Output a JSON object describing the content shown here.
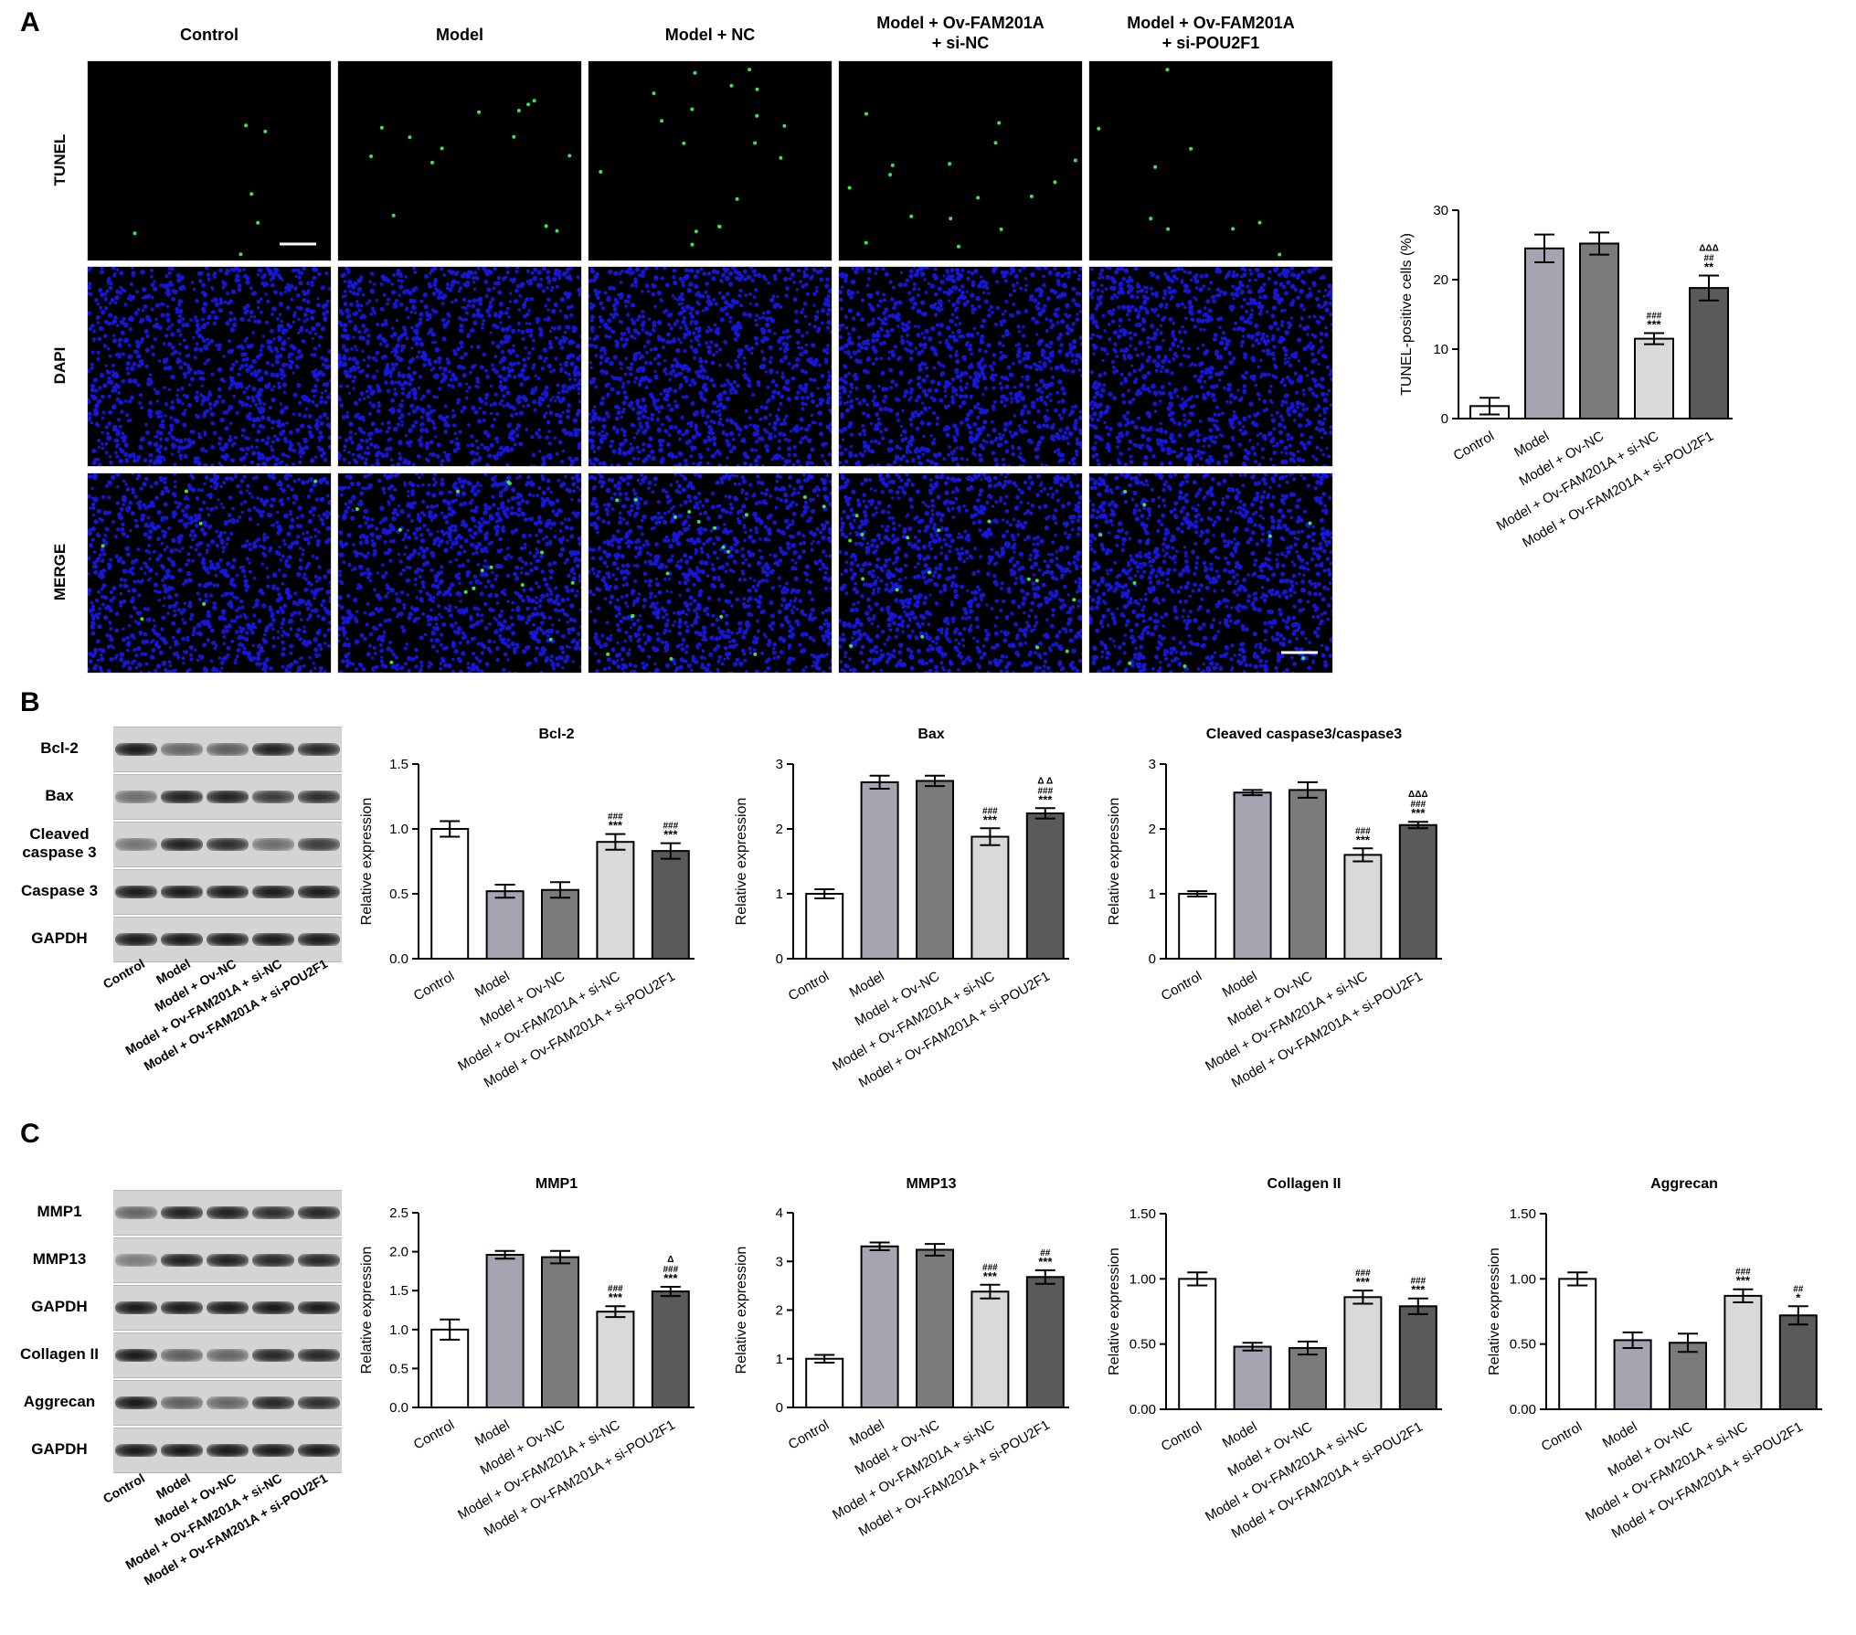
{
  "panels": {
    "A": "A",
    "B": "B",
    "C": "C"
  },
  "microscopy": {
    "columns": [
      "Control",
      "Model",
      "Model + NC",
      "Model + Ov-FAM201A\n+ si-NC",
      "Model + Ov-FAM201A\n+ si-POU2F1"
    ],
    "rows": [
      "TUNEL",
      "DAPI",
      "MERGE"
    ],
    "colors": {
      "tunel": "#39e650",
      "dapi": "#1a1aff",
      "background": "#000000"
    }
  },
  "blots": {
    "B": {
      "rows": [
        "Bcl-2",
        "Bax",
        "Cleaved\ncaspase 3",
        "Caspase 3",
        "GAPDH"
      ],
      "band_intensity": [
        [
          1.0,
          0.45,
          0.5,
          0.95,
          0.9
        ],
        [
          0.4,
          0.95,
          0.95,
          0.75,
          0.85
        ],
        [
          0.35,
          0.95,
          0.85,
          0.4,
          0.75
        ],
        [
          1,
          1,
          1,
          1,
          1
        ],
        [
          1,
          1,
          1,
          1,
          1
        ]
      ],
      "lanes": [
        "Control",
        "Model",
        "Model + Ov-NC",
        "Model + Ov-FAM201A + si-NC",
        "Model + Ov-FAM201A + si-POU2F1"
      ]
    },
    "C": {
      "rows": [
        "MMP1",
        "MMP13",
        "GAPDH",
        "Collagen II",
        "Aggrecan",
        "GAPDH"
      ],
      "band_intensity": [
        [
          0.45,
          0.95,
          0.95,
          0.85,
          0.9
        ],
        [
          0.3,
          0.95,
          0.95,
          0.9,
          0.9
        ],
        [
          1,
          1,
          1,
          1,
          1
        ],
        [
          1.0,
          0.5,
          0.45,
          0.9,
          0.9
        ],
        [
          1.0,
          0.5,
          0.45,
          0.9,
          0.85
        ],
        [
          1,
          1,
          1,
          1,
          1
        ]
      ],
      "lanes": [
        "Control",
        "Model",
        "Model + Ov-NC",
        "Model + Ov-FAM201A + si-NC",
        "Model + Ov-FAM201A + si-POU2F1"
      ]
    }
  },
  "chart_data": [
    {
      "id": "tunel",
      "type": "bar",
      "title": "",
      "ylabel": "TUNEL-positive cells (%)",
      "categories": [
        "Control",
        "Model",
        "Model + Ov-NC",
        "Model + Ov-FAM201A + si-NC",
        "Model + Ov-FAM201A + si-POU2F1"
      ],
      "values": [
        1.8,
        24.5,
        25.2,
        11.5,
        18.8
      ],
      "errors": [
        1.2,
        2.0,
        1.6,
        0.8,
        1.8
      ],
      "ylim": [
        0,
        30
      ],
      "yticks": [
        0,
        10,
        20,
        30
      ],
      "annotations": [
        "",
        "",
        "",
        "###\n***",
        "ΔΔΔ\n##\n**"
      ]
    },
    {
      "id": "bcl2",
      "type": "bar",
      "title": "Bcl-2",
      "ylabel": "Relative expression",
      "categories": [
        "Control",
        "Model",
        "Model + Ov-NC",
        "Model + Ov-FAM201A + si-NC",
        "Model + Ov-FAM201A + si-POU2F1"
      ],
      "values": [
        1.0,
        0.52,
        0.53,
        0.9,
        0.83
      ],
      "errors": [
        0.06,
        0.05,
        0.06,
        0.06,
        0.06
      ],
      "ylim": [
        0,
        1.5
      ],
      "yticks": [
        0.0,
        0.5,
        1.0,
        1.5
      ],
      "annotations": [
        "",
        "",
        "",
        "###\n***",
        "###\n***"
      ]
    },
    {
      "id": "bax",
      "type": "bar",
      "title": "Bax",
      "ylabel": "Relative expression",
      "categories": [
        "Control",
        "Model",
        "Model + Ov-NC",
        "Model + Ov-FAM201A + si-NC",
        "Model + Ov-FAM201A + si-POU2F1"
      ],
      "values": [
        1.0,
        2.72,
        2.74,
        1.88,
        2.24
      ],
      "errors": [
        0.07,
        0.1,
        0.08,
        0.13,
        0.08
      ],
      "ylim": [
        0,
        3
      ],
      "yticks": [
        0,
        1,
        2,
        3
      ],
      "annotations": [
        "",
        "",
        "",
        "###\n***",
        "Δ Δ\n###\n***"
      ]
    },
    {
      "id": "casp3",
      "type": "bar",
      "title": "Cleaved caspase3/caspase3",
      "ylabel": "Relative expression",
      "categories": [
        "Control",
        "Model",
        "Model + Ov-NC",
        "Model + Ov-FAM201A + si-NC",
        "Model + Ov-FAM201A + si-POU2F1"
      ],
      "values": [
        1.0,
        2.56,
        2.6,
        1.6,
        2.06
      ],
      "errors": [
        0.04,
        0.04,
        0.12,
        0.1,
        0.05
      ],
      "ylim": [
        0,
        3
      ],
      "yticks": [
        0,
        1,
        2,
        3
      ],
      "annotations": [
        "",
        "",
        "",
        "###\n***",
        "ΔΔΔ\n###\n***"
      ]
    },
    {
      "id": "mmp1",
      "type": "bar",
      "title": "MMP1",
      "ylabel": "Relative expression",
      "categories": [
        "Control",
        "Model",
        "Model + Ov-NC",
        "Model + Ov-FAM201A + si-NC",
        "Model + Ov-FAM201A + si-POU2F1"
      ],
      "values": [
        1.0,
        1.96,
        1.93,
        1.23,
        1.49
      ],
      "errors": [
        0.13,
        0.05,
        0.08,
        0.07,
        0.06
      ],
      "ylim": [
        0,
        2.5
      ],
      "yticks": [
        0.0,
        0.5,
        1.0,
        1.5,
        2.0,
        2.5
      ],
      "annotations": [
        "",
        "",
        "",
        "###\n***",
        "Δ\n###\n***"
      ]
    },
    {
      "id": "mmp13",
      "type": "bar",
      "title": "MMP13",
      "ylabel": "Relative expression",
      "categories": [
        "Control",
        "Model",
        "Model + Ov-NC",
        "Model + Ov-FAM201A + si-NC",
        "Model + Ov-FAM201A + si-POU2F1"
      ],
      "values": [
        1.0,
        3.31,
        3.24,
        2.38,
        2.68
      ],
      "errors": [
        0.08,
        0.08,
        0.12,
        0.14,
        0.14
      ],
      "ylim": [
        0,
        4
      ],
      "yticks": [
        0,
        1,
        2,
        3,
        4
      ],
      "annotations": [
        "",
        "",
        "",
        "###\n***",
        "##\n***"
      ]
    },
    {
      "id": "col2",
      "type": "bar",
      "title": "Collagen II",
      "ylabel": "Relative expression",
      "categories": [
        "Control",
        "Model",
        "Model + Ov-NC",
        "Model + Ov-FAM201A + si-NC",
        "Model + Ov-FAM201A + si-POU2F1"
      ],
      "values": [
        1.0,
        0.48,
        0.47,
        0.86,
        0.79
      ],
      "errors": [
        0.05,
        0.03,
        0.05,
        0.05,
        0.06
      ],
      "ylim": [
        0,
        1.5
      ],
      "yticks": [
        0.0,
        0.5,
        1.0,
        1.5
      ],
      "annotations": [
        "",
        "",
        "",
        "###\n***",
        "###\n***"
      ]
    },
    {
      "id": "aggrecan",
      "type": "bar",
      "title": "Aggrecan",
      "ylabel": "Relative expression",
      "categories": [
        "Control",
        "Model",
        "Model + Ov-NC",
        "Model + Ov-FAM201A + si-NC",
        "Model + Ov-FAM201A + si-POU2F1"
      ],
      "values": [
        1.0,
        0.53,
        0.51,
        0.87,
        0.72
      ],
      "errors": [
        0.05,
        0.06,
        0.07,
        0.05,
        0.07
      ],
      "ylim": [
        0,
        1.5
      ],
      "yticks": [
        0.0,
        0.5,
        1.0,
        1.5
      ],
      "annotations": [
        "",
        "",
        "",
        "###\n***",
        "##\n*"
      ]
    }
  ],
  "bar_colors": [
    "#ffffff",
    "#a5a5b1",
    "#7b7b7b",
    "#d9d9d9",
    "#5a5a5a"
  ]
}
